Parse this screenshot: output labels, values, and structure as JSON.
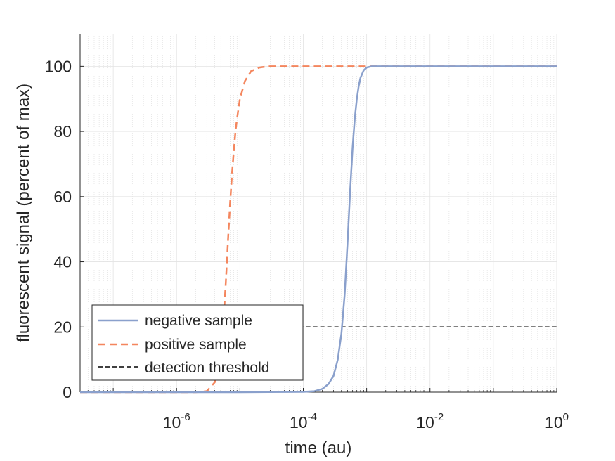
{
  "chart_data": {
    "type": "line",
    "title": "",
    "xlabel": "time (au)",
    "ylabel": "fluorescent signal (percent of max)",
    "x_scale": "log",
    "xlim": [
      3e-08,
      1
    ],
    "ylim": [
      0,
      110
    ],
    "grid": true,
    "minor_grid": true,
    "legend_position": "bottom-left",
    "x_ticks": [
      {
        "value": 1e-06,
        "base": "10",
        "exp": "-6"
      },
      {
        "value": 0.0001,
        "base": "10",
        "exp": "-4"
      },
      {
        "value": 0.01,
        "base": "10",
        "exp": "-2"
      },
      {
        "value": 1,
        "base": "10",
        "exp": "0"
      }
    ],
    "y_ticks": [
      {
        "value": 0,
        "label": "0"
      },
      {
        "value": 20,
        "label": "20"
      },
      {
        "value": 40,
        "label": "40"
      },
      {
        "value": 60,
        "label": "60"
      },
      {
        "value": 80,
        "label": "80"
      },
      {
        "value": 100,
        "label": "100"
      }
    ],
    "series": [
      {
        "name": "negative sample",
        "style": "solid",
        "color": "#8aa0cc",
        "x": [
          3e-08,
          1e-06,
          1e-05,
          0.0001,
          0.00015,
          0.0002,
          0.00025,
          0.0003,
          0.00035,
          0.0004,
          0.00045,
          0.0005,
          0.00055,
          0.0006,
          0.00065,
          0.0007,
          0.00075,
          0.0008,
          0.0009,
          0.001,
          0.0012,
          0.0015,
          0.01,
          0.1,
          1
        ],
        "y": [
          0,
          0,
          0,
          0.1,
          0.3,
          1,
          2.5,
          5,
          10,
          18,
          30,
          46,
          62,
          75,
          84,
          90,
          94,
          96.5,
          98.8,
          99.6,
          100,
          100,
          100,
          100,
          100
        ]
      },
      {
        "name": "positive sample",
        "style": "dashed",
        "color": "#f4865e",
        "x": [
          3e-08,
          1e-07,
          1e-06,
          2e-06,
          3e-06,
          4e-06,
          4.5e-06,
          5e-06,
          5.5e-06,
          6e-06,
          6.5e-06,
          7e-06,
          7.5e-06,
          8e-06,
          8.5e-06,
          9e-06,
          1e-05,
          1.2e-05,
          1.5e-05,
          2e-05,
          2.5e-05,
          3e-05,
          4e-05,
          0.0001,
          0.01,
          1
        ],
        "y": [
          0,
          0,
          0,
          0,
          0.3,
          3,
          6,
          12,
          22,
          34,
          47,
          58,
          67,
          74,
          80,
          84,
          90,
          95.5,
          98.5,
          99.6,
          99.9,
          100,
          100,
          100,
          100,
          100
        ]
      },
      {
        "name": "detection threshold",
        "style": "dashed",
        "color": "#000000",
        "x": [
          4e-05,
          1
        ],
        "y": [
          20,
          20
        ]
      }
    ]
  }
}
